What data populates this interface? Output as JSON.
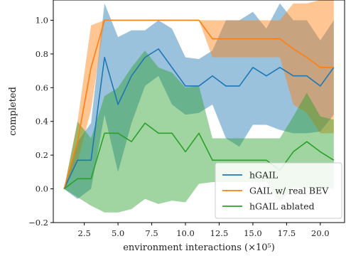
{
  "chart_data": {
    "type": "line",
    "xlabel": "environment interactions (×10⁵)",
    "ylabel": "completed",
    "xlim": [
      0.2,
      21.8
    ],
    "ylim": [
      -0.2,
      1.12
    ],
    "x_ticks": [
      2.5,
      5.0,
      7.5,
      10.0,
      12.5,
      15.0,
      17.5,
      20.0
    ],
    "x_tick_labels": [
      "2.5",
      "5.0",
      "7.5",
      "10.0",
      "12.5",
      "15.0",
      "17.5",
      "20.0"
    ],
    "y_ticks": [
      -0.2,
      0.0,
      0.2,
      0.4,
      0.6,
      0.8,
      1.0
    ],
    "y_tick_labels": [
      "−0.2",
      "0.0",
      "0.2",
      "0.4",
      "0.6",
      "0.8",
      "1.0"
    ],
    "grid": false,
    "legend_position": "bottom-right",
    "x": [
      1,
      2,
      3,
      4,
      5,
      6,
      7,
      8,
      9,
      10,
      11,
      12,
      13,
      14,
      15,
      16,
      17,
      18,
      19,
      20,
      21
    ],
    "series": [
      {
        "name": "hGAIL",
        "color": "#1f77b4",
        "values": [
          0.0,
          0.17,
          0.17,
          0.78,
          0.5,
          0.67,
          0.78,
          0.83,
          0.72,
          0.61,
          0.61,
          0.67,
          0.61,
          0.61,
          0.72,
          0.67,
          0.72,
          0.67,
          0.67,
          0.61,
          0.72
        ],
        "upper": [
          0.0,
          0.28,
          0.39,
          1.1,
          0.9,
          0.94,
          0.94,
          1.0,
          0.95,
          0.78,
          0.77,
          0.82,
          1.0,
          1.0,
          1.05,
          0.95,
          1.1,
          1.0,
          1.0,
          0.88,
          1.0
        ],
        "lower": [
          0.0,
          -0.06,
          0.0,
          0.44,
          0.1,
          0.39,
          0.61,
          0.67,
          0.5,
          0.44,
          0.45,
          0.5,
          0.3,
          0.25,
          0.38,
          0.38,
          0.35,
          0.33,
          0.33,
          0.34,
          0.44
        ]
      },
      {
        "name": "GAIL w/ real BEV",
        "color": "#ff7f0e",
        "values": [
          0.0,
          0.28,
          0.72,
          1.0,
          1.0,
          1.0,
          1.0,
          1.0,
          1.0,
          1.0,
          1.0,
          0.89,
          0.89,
          0.89,
          0.89,
          0.89,
          0.89,
          0.83,
          0.78,
          0.72,
          0.72
        ],
        "upper": [
          0.0,
          0.4,
          0.97,
          1.0,
          1.0,
          1.0,
          1.0,
          1.0,
          1.0,
          1.0,
          1.0,
          1.0,
          1.0,
          1.0,
          1.0,
          1.0,
          1.0,
          1.1,
          1.1,
          1.12,
          1.12
        ],
        "lower": [
          0.0,
          0.16,
          0.47,
          1.0,
          1.0,
          1.0,
          1.0,
          1.0,
          1.0,
          1.0,
          1.0,
          0.78,
          0.78,
          0.78,
          0.78,
          0.78,
          0.78,
          0.5,
          0.45,
          0.33,
          0.33
        ]
      },
      {
        "name": "hGAIL ablated",
        "color": "#2ca02c",
        "values": [
          0.0,
          0.06,
          0.06,
          0.33,
          0.33,
          0.28,
          0.39,
          0.33,
          0.33,
          0.22,
          0.33,
          0.17,
          0.17,
          0.17,
          0.17,
          0.17,
          0.11,
          0.22,
          0.28,
          0.22,
          0.17
        ],
        "upper": [
          0.0,
          0.4,
          0.3,
          0.55,
          0.6,
          0.72,
          0.82,
          0.72,
          0.69,
          0.6,
          0.61,
          0.3,
          0.3,
          0.3,
          0.3,
          0.3,
          0.3,
          0.43,
          0.57,
          0.43,
          0.41
        ],
        "lower": [
          0.0,
          -0.05,
          -0.1,
          -0.14,
          -0.14,
          -0.12,
          -0.06,
          -0.09,
          -0.07,
          -0.08,
          0.03,
          0.04,
          0.04,
          0.04,
          0.04,
          0.04,
          -0.08,
          0.01,
          0.0,
          0.0,
          0.0
        ]
      }
    ]
  }
}
